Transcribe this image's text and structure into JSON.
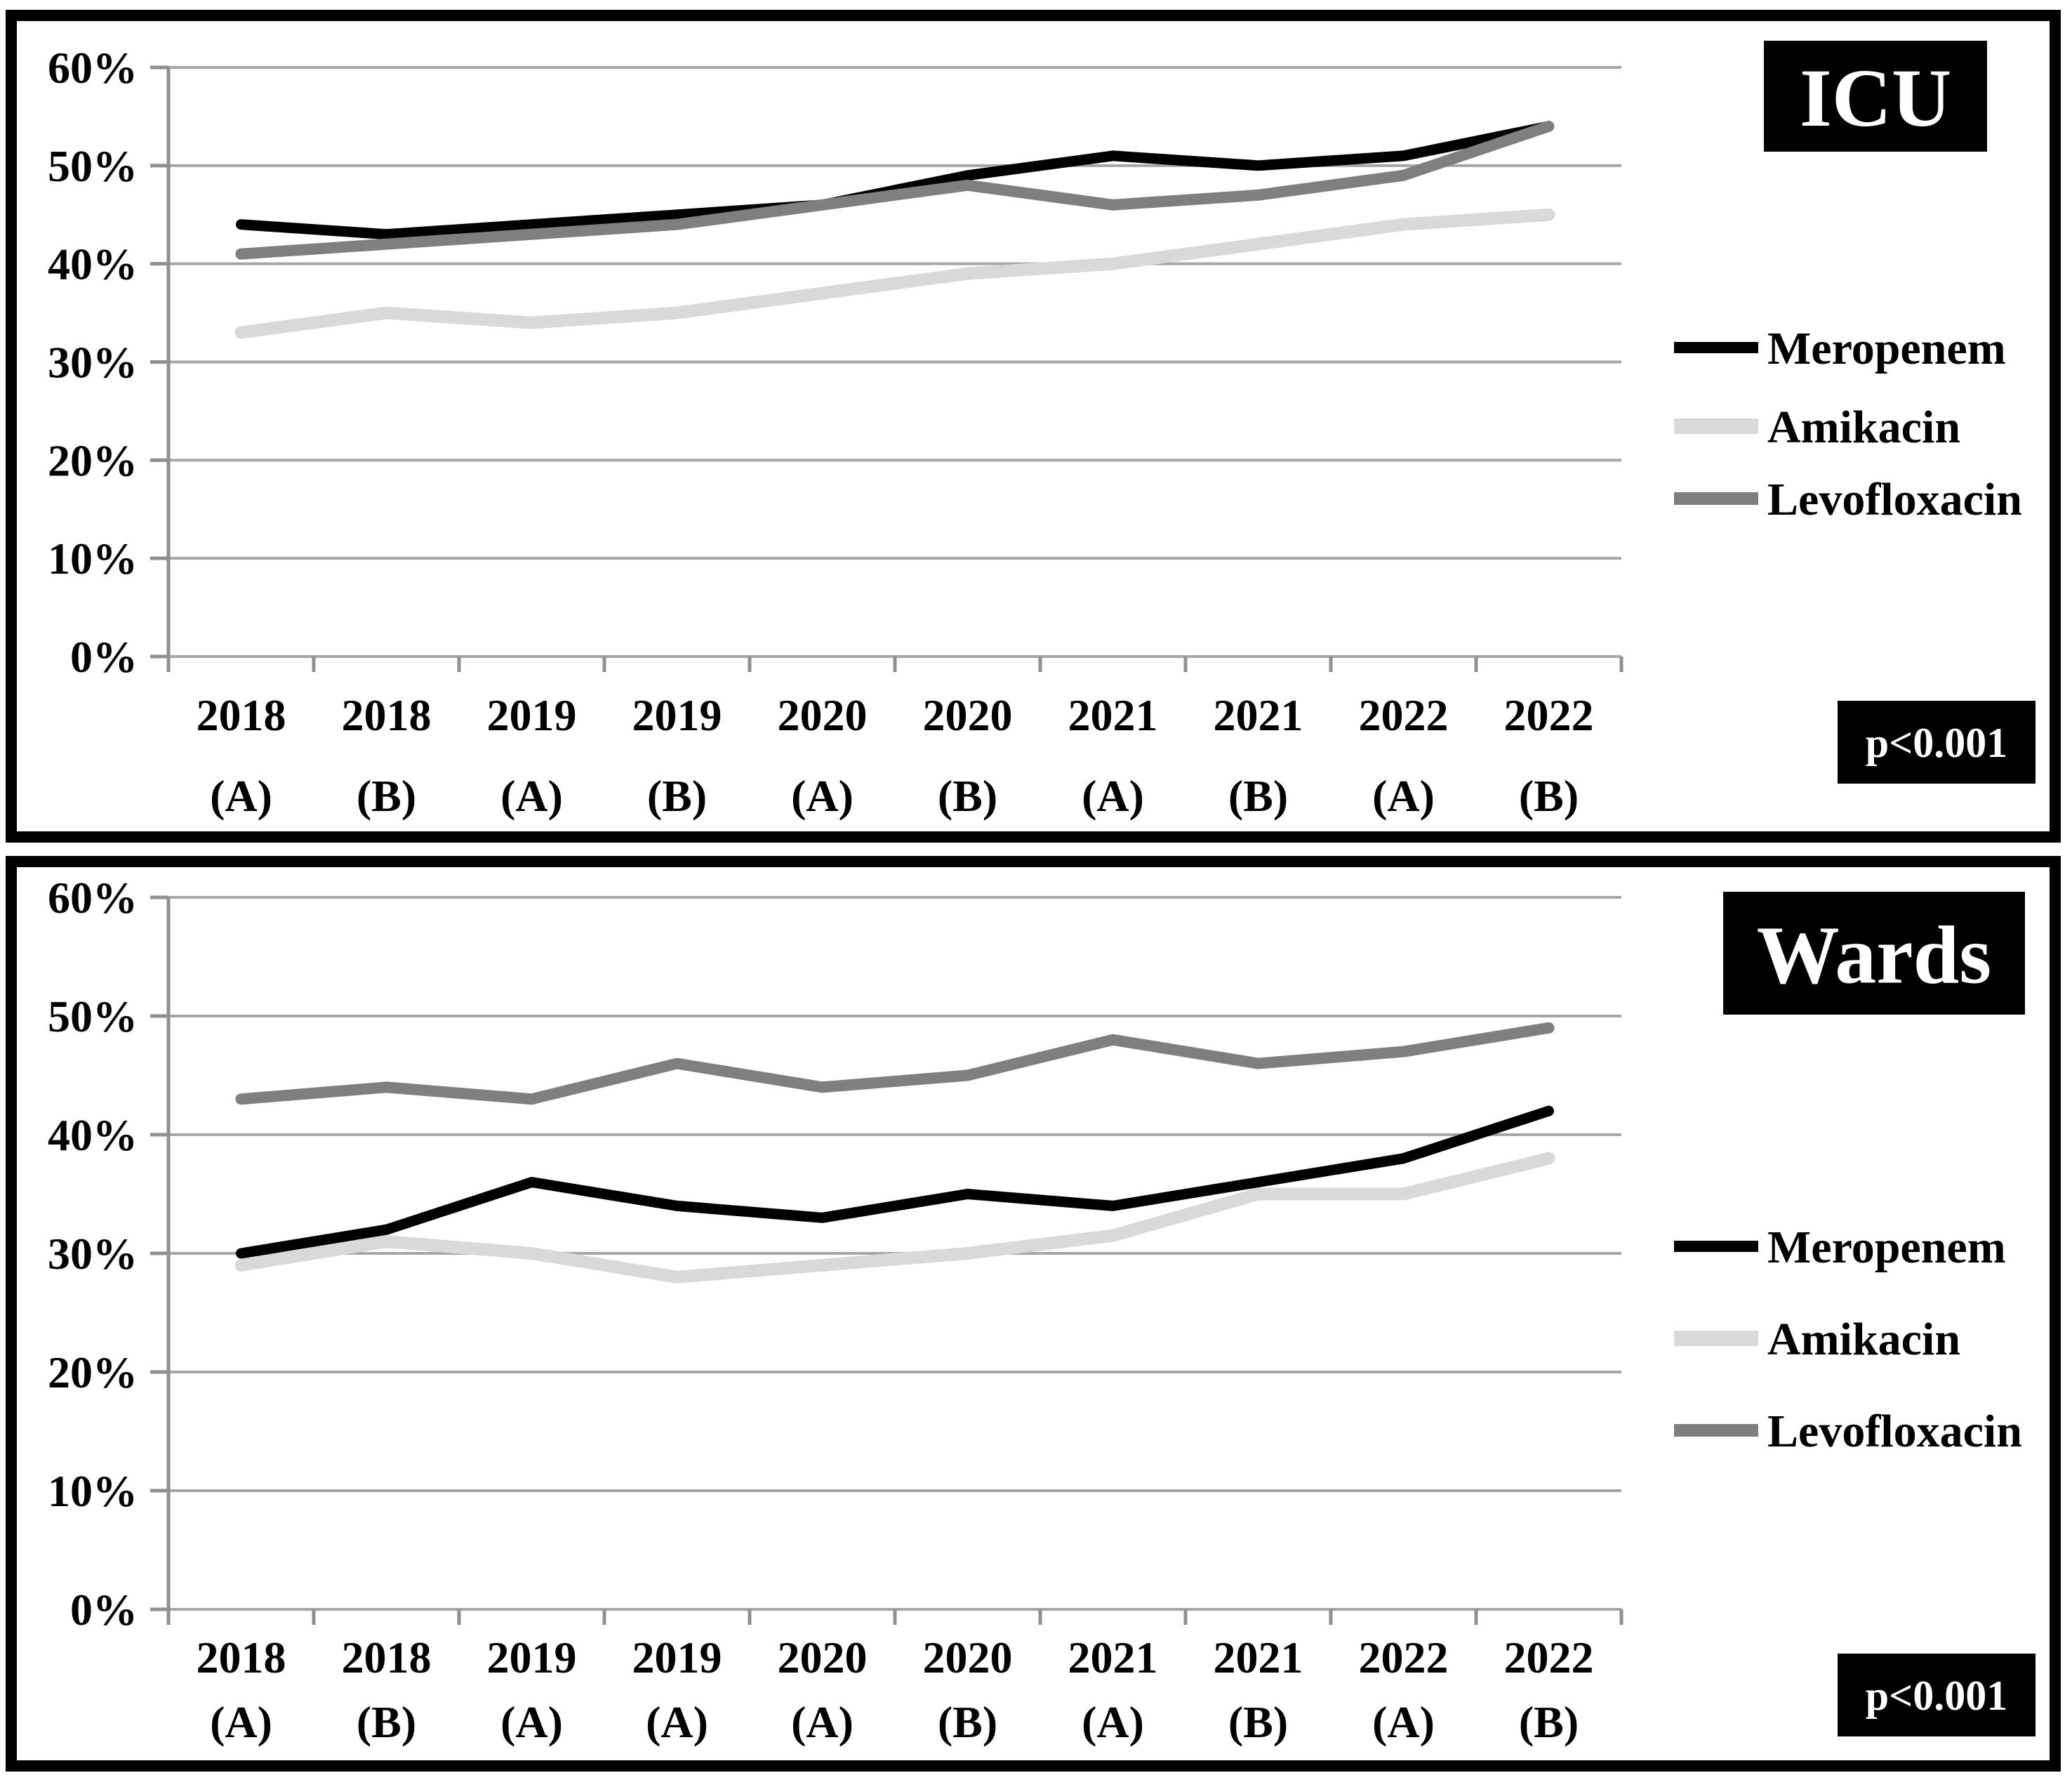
{
  "figure": {
    "background": "#ffffff",
    "frame_color": "#000000",
    "grid_color": "#a6a6a6",
    "axis_color": "#8f8f8f",
    "text_color": "#000000"
  },
  "chart_data": [
    {
      "type": "line",
      "panel": "ICU",
      "title": "ICU",
      "p_value_label": "p<0.001",
      "xlabel": "",
      "ylabel": "",
      "ylim": [
        0,
        60
      ],
      "grid": true,
      "legend_position": "right",
      "y_tick_labels": [
        "60%",
        "50%",
        "40%",
        "30%",
        "20%",
        "10%",
        "0%"
      ],
      "categories": [
        "2018 (A)",
        "2018 (B)",
        "2019 (A)",
        "2019 (B)",
        "2020 (A)",
        "2020 (B)",
        "2021 (A)",
        "2021 (B)",
        "2022 (A)",
        "2022 (B)"
      ],
      "series": [
        {
          "name": "Meropenem",
          "color": "#000000",
          "values": [
            44,
            43,
            44,
            45,
            46,
            49,
            51,
            50,
            51,
            54
          ]
        },
        {
          "name": "Amikacin",
          "color": "#d9d9d9",
          "values": [
            33,
            35,
            34,
            35,
            37,
            39,
            40,
            42,
            44,
            45
          ]
        },
        {
          "name": "Levofloxacin",
          "color": "#7f7f7f",
          "values": [
            41,
            42,
            43,
            44,
            46,
            48,
            46,
            47,
            49,
            54
          ]
        }
      ]
    },
    {
      "type": "line",
      "panel": "Wards",
      "title": "Wards",
      "p_value_label": "p<0.001",
      "xlabel": "",
      "ylabel": "",
      "ylim": [
        0,
        60
      ],
      "grid": true,
      "legend_position": "right",
      "y_tick_labels": [
        "60%",
        "50%",
        "40%",
        "30%",
        "20%",
        "10%",
        "0%"
      ],
      "categories": [
        "2018 (A)",
        "2018 (B)",
        "2019 (A)",
        "2019 (A)",
        "2020 (A)",
        "2020 (B)",
        "2021 (A)",
        "2021 (B)",
        "2022 (A)",
        "2022 (B)"
      ],
      "series": [
        {
          "name": "Meropenem",
          "color": "#000000",
          "values": [
            30,
            32,
            36,
            34,
            33,
            35,
            34,
            36,
            38,
            42
          ]
        },
        {
          "name": "Amikacin",
          "color": "#d9d9d9",
          "values": [
            29,
            31,
            30,
            28,
            29,
            30,
            31.5,
            35,
            35,
            38
          ]
        },
        {
          "name": "Levofloxacin",
          "color": "#7f7f7f",
          "values": [
            43,
            44,
            43,
            46,
            44,
            45,
            48,
            46,
            47,
            49
          ]
        }
      ]
    }
  ]
}
